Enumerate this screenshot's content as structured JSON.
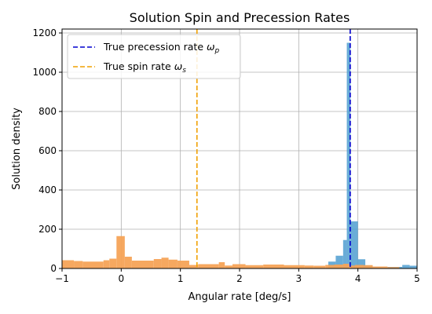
{
  "chart_data": {
    "type": "histogram",
    "title": "Solution Spin and Precession Rates",
    "xlabel": "Angular rate [deg/s]",
    "ylabel": "Solution density",
    "xlim": [
      -1,
      5
    ],
    "ylim": [
      0,
      1220
    ],
    "xticks": [
      "−1",
      "0",
      "1",
      "2",
      "3",
      "4",
      "5"
    ],
    "xtick_values": [
      -1,
      0,
      1,
      2,
      3,
      4,
      5
    ],
    "yticks": [
      "0",
      "200",
      "400",
      "600",
      "800",
      "1000",
      "1200"
    ],
    "ytick_values": [
      0,
      200,
      400,
      600,
      800,
      1000,
      1200
    ],
    "grid": true,
    "legend_position": "top-left",
    "series": [
      {
        "color": "#4f9ed0",
        "alpha": 0.85,
        "bins": [
          {
            "x0": 3.5,
            "x1": 3.625,
            "y": 35
          },
          {
            "x0": 3.625,
            "x1": 3.75,
            "y": 65
          },
          {
            "x0": 3.75,
            "x1": 3.8125,
            "y": 145
          },
          {
            "x0": 3.8125,
            "x1": 3.875,
            "y": 1150
          },
          {
            "x0": 3.875,
            "x1": 4.0,
            "y": 240
          },
          {
            "x0": 4.0,
            "x1": 4.125,
            "y": 47
          },
          {
            "x0": 4.125,
            "x1": 4.25,
            "y": 15
          },
          {
            "x0": 4.5,
            "x1": 4.75,
            "y": 8
          },
          {
            "x0": 4.75,
            "x1": 4.875,
            "y": 18
          },
          {
            "x0": 4.875,
            "x1": 5.0,
            "y": 14
          }
        ]
      },
      {
        "color": "#f5a357",
        "alpha": 0.95,
        "bins": [
          {
            "x0": -1.0,
            "x1": -0.8,
            "y": 42
          },
          {
            "x0": -0.8,
            "x1": -0.65,
            "y": 38
          },
          {
            "x0": -0.65,
            "x1": -0.3,
            "y": 35
          },
          {
            "x0": -0.3,
            "x1": -0.2,
            "y": 42
          },
          {
            "x0": -0.2,
            "x1": -0.08,
            "y": 50
          },
          {
            "x0": -0.08,
            "x1": 0.06,
            "y": 165
          },
          {
            "x0": 0.06,
            "x1": 0.18,
            "y": 60
          },
          {
            "x0": 0.18,
            "x1": 0.55,
            "y": 40
          },
          {
            "x0": 0.55,
            "x1": 0.68,
            "y": 48
          },
          {
            "x0": 0.68,
            "x1": 0.8,
            "y": 55
          },
          {
            "x0": 0.8,
            "x1": 0.95,
            "y": 45
          },
          {
            "x0": 0.95,
            "x1": 1.15,
            "y": 40
          },
          {
            "x0": 1.15,
            "x1": 1.3,
            "y": 18
          },
          {
            "x0": 1.3,
            "x1": 1.65,
            "y": 22
          },
          {
            "x0": 1.65,
            "x1": 1.75,
            "y": 32
          },
          {
            "x0": 1.75,
            "x1": 1.88,
            "y": 15
          },
          {
            "x0": 1.88,
            "x1": 2.1,
            "y": 22
          },
          {
            "x0": 2.1,
            "x1": 2.4,
            "y": 17
          },
          {
            "x0": 2.4,
            "x1": 2.75,
            "y": 20
          },
          {
            "x0": 2.75,
            "x1": 3.1,
            "y": 17
          },
          {
            "x0": 3.1,
            "x1": 3.25,
            "y": 15
          },
          {
            "x0": 3.25,
            "x1": 3.45,
            "y": 14
          },
          {
            "x0": 3.45,
            "x1": 3.6,
            "y": 18
          },
          {
            "x0": 3.6,
            "x1": 3.75,
            "y": 20
          },
          {
            "x0": 3.75,
            "x1": 3.85,
            "y": 24
          },
          {
            "x0": 3.85,
            "x1": 3.95,
            "y": 15
          },
          {
            "x0": 3.95,
            "x1": 4.1,
            "y": 18
          },
          {
            "x0": 4.1,
            "x1": 4.25,
            "y": 17
          },
          {
            "x0": 4.25,
            "x1": 4.5,
            "y": 10
          },
          {
            "x0": 4.5,
            "x1": 4.7,
            "y": 7
          }
        ]
      }
    ],
    "reference_lines": [
      {
        "label_text": "True precession rate ",
        "symbol_base": "ω",
        "symbol_sub": "p",
        "x": 3.87,
        "color": "#0000cd"
      },
      {
        "label_text": "True spin rate ",
        "symbol_base": "ω",
        "symbol_sub": "s",
        "x": 1.28,
        "color": "#f0a000"
      }
    ]
  }
}
